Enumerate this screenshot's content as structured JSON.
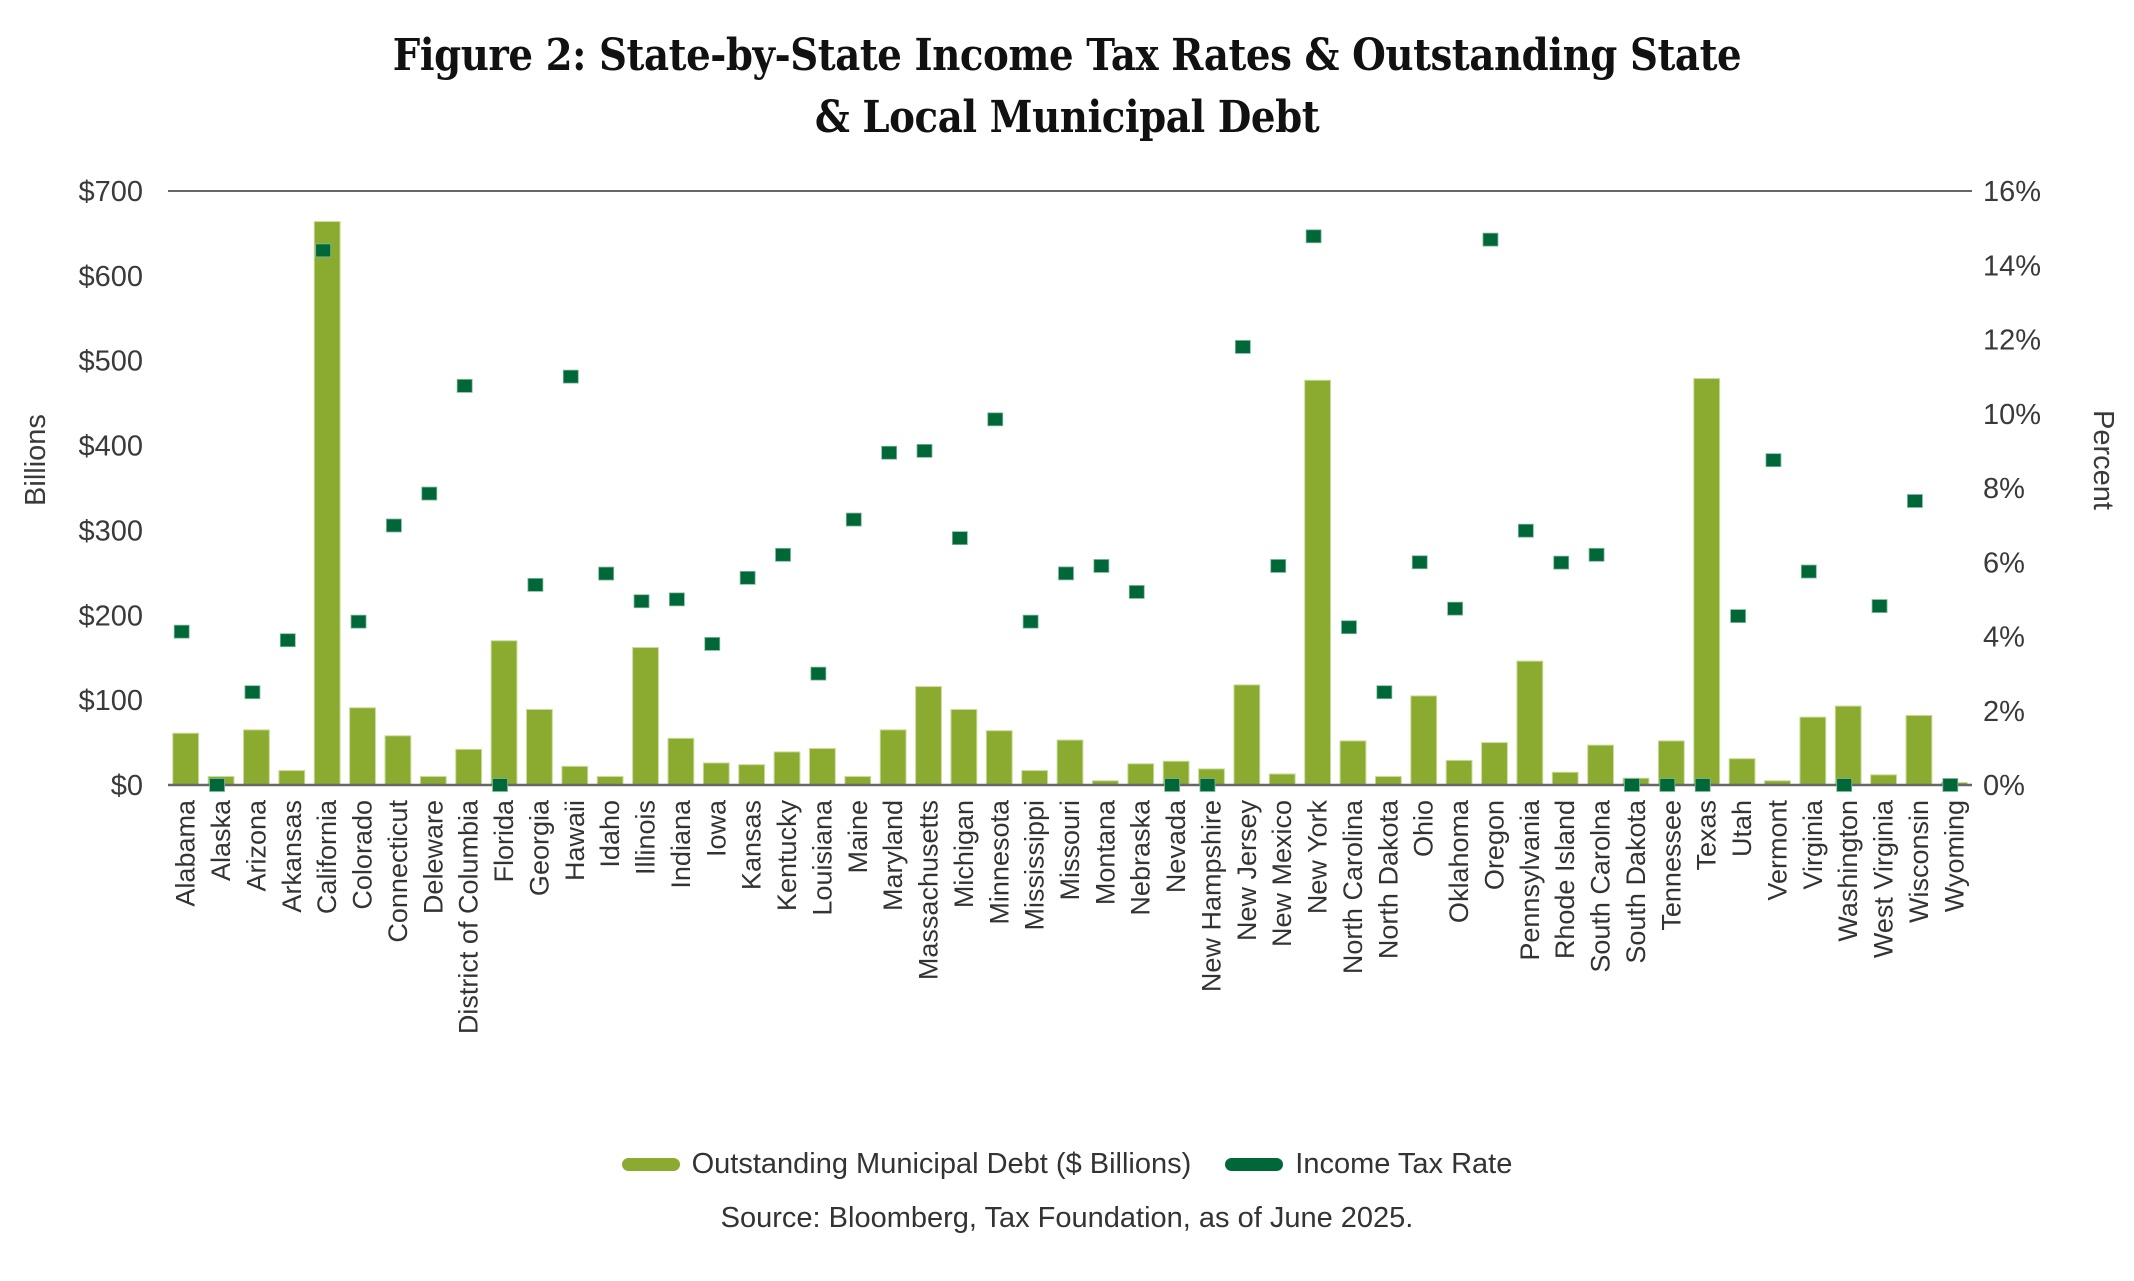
{
  "title": {
    "line1": "Figure 2: State-by-State Income Tax Rates & Outstanding State",
    "line2": "& Local Municipal Debt"
  },
  "colors": {
    "debt_bar": "#8aab2f",
    "tax_marker": "#006838",
    "axis": "#555555"
  },
  "legend": {
    "debt_label": "Outstanding Municipal Debt ($ Billions)",
    "tax_label": "Income Tax Rate"
  },
  "source": "Source: Bloomberg, Tax Foundation, as of June 2025.",
  "chart_data": {
    "type": "bar",
    "title": "Figure 2: State-by-State Income Tax Rates & Outstanding State & Local Municipal Debt",
    "xlabel": "",
    "ylabel": "Billions",
    "y2label": "Percent",
    "ylim": [
      0,
      700
    ],
    "y2lim": [
      0,
      16
    ],
    "yticks": [
      "$0",
      "$100",
      "$200",
      "$300",
      "$400",
      "$500",
      "$600",
      "$700"
    ],
    "y2ticks": [
      "0%",
      "2%",
      "4%",
      "6%",
      "8%",
      "10%",
      "12%",
      "14%",
      "16%"
    ],
    "grid": false,
    "legend_position": "bottom",
    "categories": [
      "Alabama",
      "Alaska",
      "Arizona",
      "Arkansas",
      "California",
      "Colorado",
      "Connecticut",
      "Deleware",
      "District of Columbia",
      "Florida",
      "Georgia",
      "Hawaii",
      "Idaho",
      "Illinois",
      "Indiana",
      "Iowa",
      "Kansas",
      "Kentucky",
      "Louisiana",
      "Maine",
      "Maryland",
      "Massachusetts",
      "Michigan",
      "Minnesota",
      "Mississippi",
      "Missouri",
      "Montana",
      "Nebraska",
      "Nevada",
      "New Hampshire",
      "New Jersey",
      "New Mexico",
      "New York",
      "North Carolina",
      "North Dakota",
      "Ohio",
      "Oklahoma",
      "Oregon",
      "Pennsylvania",
      "Rhode Island",
      "South Carolna",
      "South Dakota",
      "Tennessee",
      "Texas",
      "Utah",
      "Vermont",
      "Virginia",
      "Washington",
      "West Virginia",
      "Wisconsin",
      "Wyoming"
    ],
    "series": [
      {
        "name": "Outstanding Municipal Debt ($ Billions)",
        "type": "bar",
        "axis": "left",
        "values": [
          61,
          10,
          65,
          17,
          664,
          91,
          58,
          10,
          42,
          170,
          89,
          22,
          10,
          162,
          55,
          26,
          24,
          39,
          43,
          10,
          65,
          116,
          89,
          64,
          17,
          53,
          5,
          25,
          28,
          19,
          118,
          13,
          477,
          52,
          10,
          105,
          29,
          50,
          146,
          15,
          47,
          8,
          52,
          479,
          31,
          5,
          80,
          93,
          12,
          82,
          3
        ]
      },
      {
        "name": "Income Tax Rate",
        "type": "scatter",
        "axis": "right",
        "unit": "%",
        "values": [
          4.13,
          0,
          2.5,
          3.9,
          14.4,
          4.4,
          6.99,
          7.85,
          10.75,
          0,
          5.39,
          11.0,
          5.695,
          4.95,
          5.0,
          3.8,
          5.58,
          6.2,
          3.0,
          7.15,
          8.95,
          9.0,
          6.65,
          9.85,
          4.4,
          5.7,
          5.9,
          5.2,
          0,
          0,
          11.8,
          5.9,
          14.78,
          4.25,
          2.5,
          6.0,
          4.75,
          14.69,
          6.85,
          5.99,
          6.2,
          0,
          0,
          0,
          4.55,
          8.75,
          5.75,
          0,
          4.82,
          7.65,
          0
        ]
      }
    ]
  }
}
